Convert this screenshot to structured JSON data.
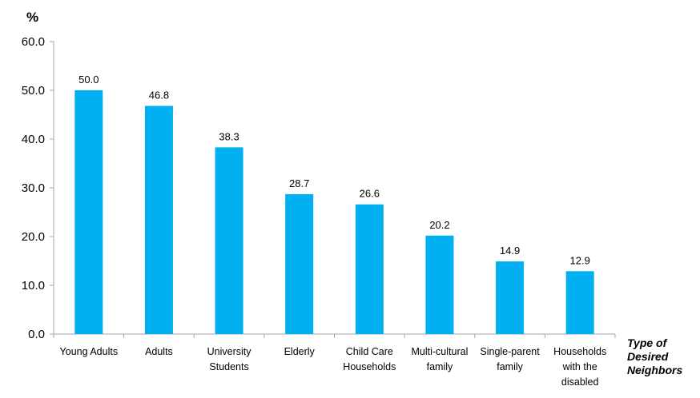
{
  "chart_data": {
    "type": "bar",
    "ylabel": "%",
    "xlabel_lines": [
      "Type of",
      "Desired",
      "Neighbors"
    ],
    "categories": [
      [
        "Young Adults"
      ],
      [
        "Adults"
      ],
      [
        "University",
        "Students"
      ],
      [
        "Elderly"
      ],
      [
        "Child Care",
        "Households"
      ],
      [
        "Multi-cultural",
        "family"
      ],
      [
        "Single-parent",
        "family"
      ],
      [
        "Households",
        "with the",
        "disabled"
      ]
    ],
    "values": [
      50.0,
      46.8,
      38.3,
      28.7,
      26.6,
      20.2,
      14.9,
      12.9
    ],
    "value_labels": [
      "50.0",
      "46.8",
      "38.3",
      "28.7",
      "26.6",
      "20.2",
      "14.9",
      "12.9"
    ],
    "ylim": [
      0,
      60
    ],
    "yticks": [
      "0.0",
      "10.0",
      "20.0",
      "30.0",
      "40.0",
      "50.0",
      "60.0"
    ],
    "bar_color": "#00b0f0",
    "grid": false,
    "legend": "none"
  }
}
